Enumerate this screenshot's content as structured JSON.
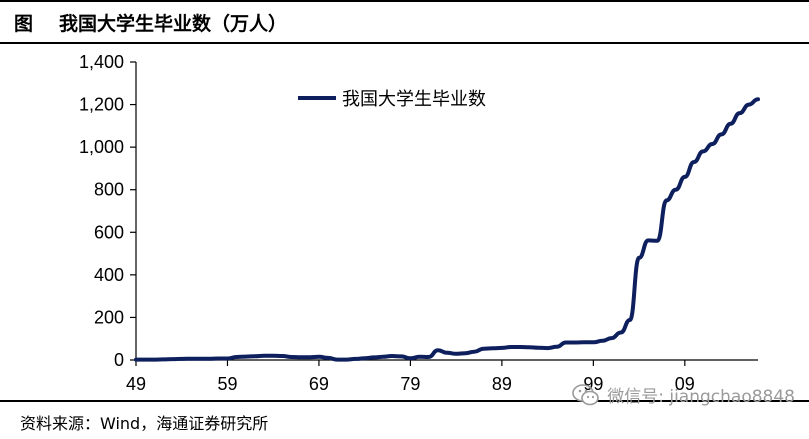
{
  "header": {
    "prefix": "图",
    "title": "我国大学生毕业数（万人）"
  },
  "footer": {
    "source": "资料来源：Wind，海通证券研究所",
    "watermark": "微信号: jiangchao8848",
    "watermark_icon": "wechat-icon"
  },
  "colors": {
    "series": "#0d1f5c",
    "axis": "#000000",
    "watermark": "#9a9a9a"
  },
  "chart_data": {
    "type": "line",
    "title": "",
    "xlabel": "",
    "ylabel": "",
    "xlim": [
      1949,
      2017
    ],
    "ylim": [
      0,
      1400
    ],
    "yticks": [
      0,
      200,
      400,
      600,
      800,
      1000,
      1200,
      1400
    ],
    "ytick_labels": [
      "0",
      "200",
      "400",
      "600",
      "800",
      "1,000",
      "1,200",
      "1,400"
    ],
    "xticks": [
      1949,
      1959,
      1969,
      1979,
      1989,
      1999,
      2009
    ],
    "xtick_labels": [
      "49",
      "59",
      "69",
      "79",
      "89",
      "99",
      "09"
    ],
    "grid": false,
    "legend_position": "top-center",
    "series": [
      {
        "name": "我国大学生毕业数",
        "x": [
          1949,
          1950,
          1951,
          1952,
          1953,
          1954,
          1955,
          1956,
          1957,
          1958,
          1959,
          1960,
          1961,
          1962,
          1963,
          1964,
          1965,
          1966,
          1967,
          1968,
          1969,
          1970,
          1971,
          1972,
          1973,
          1974,
          1975,
          1976,
          1977,
          1978,
          1979,
          1980,
          1981,
          1982,
          1983,
          1984,
          1985,
          1986,
          1987,
          1988,
          1989,
          1990,
          1991,
          1992,
          1993,
          1994,
          1995,
          1996,
          1997,
          1998,
          1999,
          2000,
          2001,
          2002,
          2003,
          2004,
          2005,
          2006,
          2007,
          2008,
          2009,
          2010,
          2011,
          2012,
          2013,
          2014,
          2015,
          2016,
          2017
        ],
        "values": [
          2,
          2,
          2,
          3,
          4,
          5,
          6,
          6,
          6,
          7,
          7,
          14,
          16,
          18,
          20,
          20,
          19,
          14,
          13,
          13,
          15,
          10,
          2,
          2,
          5,
          8,
          12,
          15,
          19,
          17,
          8,
          15,
          14,
          46,
          34,
          29,
          32,
          39,
          53,
          55,
          57,
          61,
          61,
          60,
          58,
          56,
          62,
          82,
          82,
          83,
          83,
          90,
          103,
          129,
          188,
          480,
          562,
          560,
          750,
          800,
          860,
          930,
          980,
          1015,
          1060,
          1110,
          1160,
          1200,
          1225
        ]
      }
    ]
  }
}
